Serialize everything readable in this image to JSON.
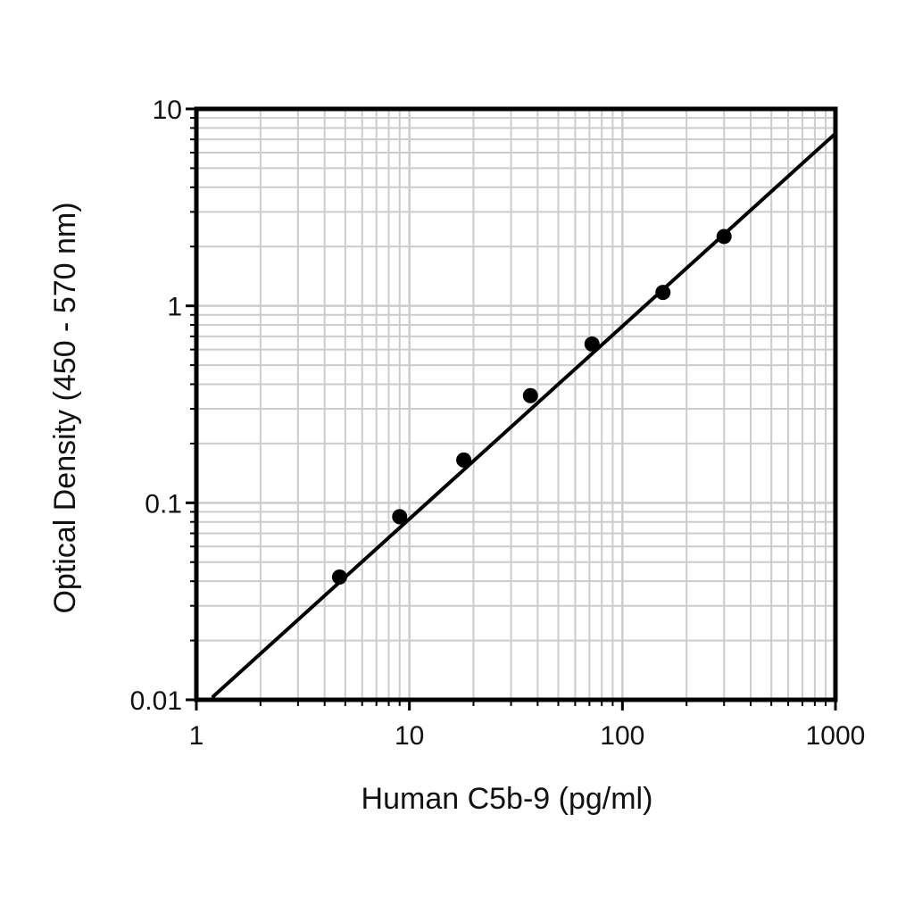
{
  "chart_data": {
    "type": "scatter",
    "xlabel": "Human C5b-9 (pg/ml)",
    "ylabel": "Optical Density (450 - 570 nm)",
    "xscale": "log",
    "yscale": "log",
    "xlim": [
      1,
      1000
    ],
    "ylim": [
      0.01,
      10
    ],
    "grid": true,
    "x_ticks": [
      1,
      10,
      100,
      1000
    ],
    "x_tick_labels": [
      "1",
      "10",
      "100",
      "1000"
    ],
    "y_ticks": [
      0.01,
      0.1,
      1,
      10
    ],
    "y_tick_labels": [
      "0.01",
      "0.1",
      "1",
      "10"
    ],
    "series": [
      {
        "points": [
          {
            "x": 4.7,
            "y": 0.042
          },
          {
            "x": 9.0,
            "y": 0.085
          },
          {
            "x": 18.0,
            "y": 0.165
          },
          {
            "x": 37.0,
            "y": 0.35
          },
          {
            "x": 72.0,
            "y": 0.64
          },
          {
            "x": 155.0,
            "y": 1.17
          },
          {
            "x": 300.0,
            "y": 2.25
          }
        ]
      }
    ],
    "fit_line": {
      "x": [
        1.2,
        1000
      ],
      "y": [
        0.0104,
        7.5
      ]
    },
    "colors": {
      "marker": "#000000",
      "line": "#000000",
      "grid": "#cccccc",
      "axis": "#000000"
    }
  }
}
